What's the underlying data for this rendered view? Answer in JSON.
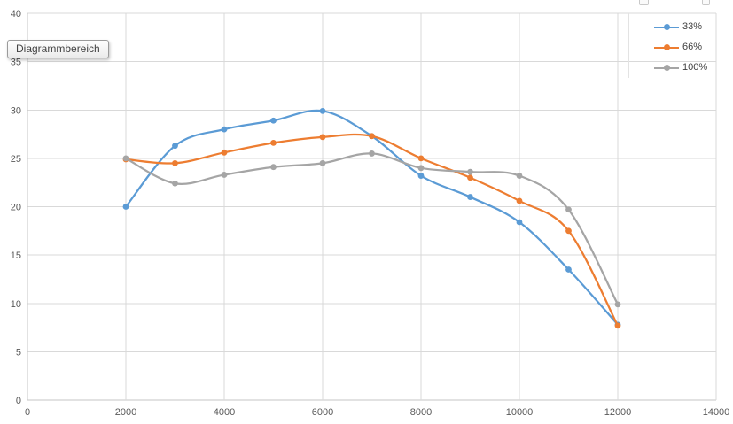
{
  "tooltip": {
    "text": "Diagrammbereich"
  },
  "chart_data": {
    "type": "line",
    "title": "",
    "xlabel": "",
    "ylabel": "",
    "x": [
      2000,
      3000,
      4000,
      5000,
      6000,
      7000,
      8000,
      9000,
      10000,
      11000,
      12000
    ],
    "series": [
      {
        "name": "33%",
        "color": "#5B9BD5",
        "values": [
          20.0,
          26.3,
          28.0,
          28.9,
          29.9,
          27.3,
          23.2,
          21.0,
          18.4,
          13.5,
          7.8
        ]
      },
      {
        "name": "66%",
        "color": "#ED7D31",
        "values": [
          24.9,
          24.5,
          25.6,
          26.6,
          27.2,
          27.3,
          25.0,
          23.0,
          20.6,
          17.5,
          7.7
        ]
      },
      {
        "name": "100%",
        "color": "#A5A5A5",
        "values": [
          25.0,
          22.4,
          23.3,
          24.1,
          24.5,
          25.5,
          24.0,
          23.6,
          23.2,
          19.7,
          9.9
        ]
      }
    ],
    "xlim": [
      0,
      14000
    ],
    "ylim": [
      0,
      40
    ],
    "xticks": [
      0,
      2000,
      4000,
      6000,
      8000,
      10000,
      12000,
      14000
    ],
    "yticks": [
      0,
      5,
      10,
      15,
      20,
      25,
      30,
      35,
      40
    ],
    "grid": true,
    "smooth": true,
    "marker": "circle",
    "legend_position": "top-right"
  },
  "colors": {
    "gridline": "#D9D9D9",
    "axis_line": "#C6C6C6",
    "tick_text": "#595959",
    "background": "#FFFFFF"
  }
}
